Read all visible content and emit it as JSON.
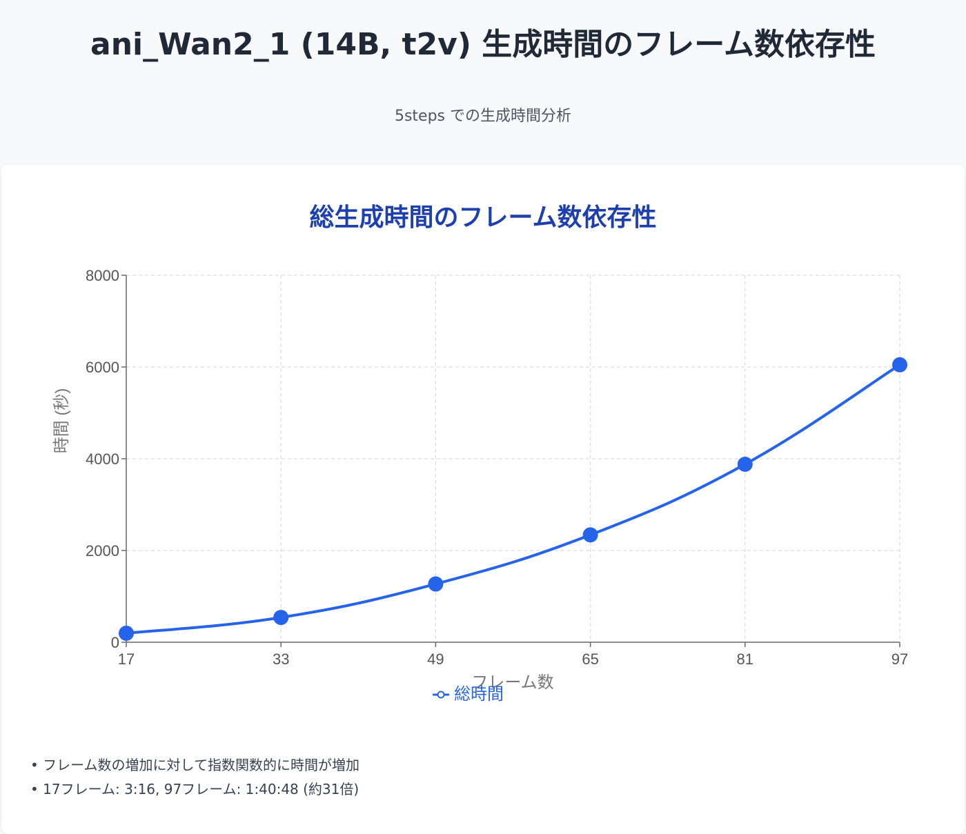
{
  "header": {
    "title": "ani_Wan2_1 (14B, t2v) 生成時間のフレーム数依存性",
    "subtitle": "5steps での生成時間分析"
  },
  "chart_data": {
    "type": "line",
    "title": "総生成時間のフレーム数依存性",
    "xlabel": "フレーム数",
    "ylabel": "時間 (秒)",
    "x": [
      17,
      33,
      49,
      65,
      81,
      97
    ],
    "categories": [
      "17",
      "33",
      "49",
      "65",
      "81",
      "97"
    ],
    "ylim": [
      0,
      8000
    ],
    "yticks": [
      0,
      2000,
      4000,
      6000,
      8000
    ],
    "grid": true,
    "legend": "bottom",
    "series": [
      {
        "name": "総時間",
        "values": [
          196,
          540,
          1270,
          2340,
          3880,
          6048
        ],
        "color": "#2563eb"
      }
    ]
  },
  "notes": [
    "フレーム数の増加に対して指数関数的に時間が増加",
    "17フレーム: 3:16, 97フレーム: 1:40:48 (約31倍)"
  ]
}
